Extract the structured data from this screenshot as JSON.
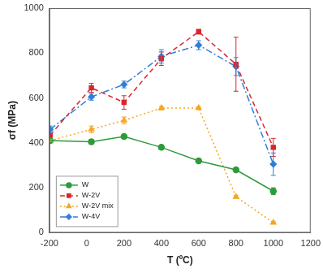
{
  "chart_data": {
    "type": "line",
    "x_label": "T (ºC)",
    "y_label": "σf (MPa)",
    "xlim": [
      -200,
      1200
    ],
    "xticks": [
      -200,
      0,
      200,
      400,
      600,
      800,
      1000,
      1200
    ],
    "ylim": [
      0,
      1000
    ],
    "yticks": [
      0,
      200,
      400,
      600,
      800,
      1000
    ],
    "grid": false,
    "legend": "lower left",
    "x": [
      -196,
      25,
      200,
      400,
      600,
      800,
      1000
    ],
    "series": [
      {
        "name": "W",
        "color": "#2e9b3a",
        "marker": "circle",
        "line_style": "solid",
        "values": [
          410,
          405,
          428,
          380,
          320,
          280,
          185
        ],
        "errors": [
          10,
          10,
          8,
          8,
          8,
          5,
          15
        ]
      },
      {
        "name": "W-2V",
        "color": "#d9262b",
        "marker": "square",
        "line_style": "dashed",
        "values": [
          435,
          645,
          580,
          775,
          895,
          750,
          380
        ],
        "errors": [
          10,
          20,
          30,
          30,
          10,
          120,
          40
        ]
      },
      {
        "name": "W-2V mix",
        "color": "#f5a623",
        "marker": "triangle",
        "line_style": "dotted",
        "values": [
          410,
          460,
          500,
          555,
          555,
          160,
          45
        ],
        "errors": [
          5,
          15,
          15,
          8,
          5,
          5,
          5
        ]
      },
      {
        "name": "W-4V",
        "color": "#2f7fd9",
        "marker": "diamond",
        "line_style": "dashdot",
        "values": [
          460,
          605,
          660,
          785,
          835,
          740,
          305
        ],
        "errors": [
          15,
          15,
          15,
          30,
          20,
          40,
          50
        ]
      }
    ]
  }
}
